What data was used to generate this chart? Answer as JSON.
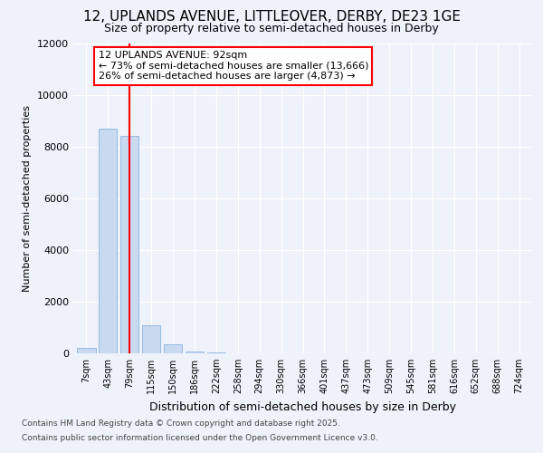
{
  "title_line1": "12, UPLANDS AVENUE, LITTLEOVER, DERBY, DE23 1GE",
  "title_line2": "Size of property relative to semi-detached houses in Derby",
  "xlabel": "Distribution of semi-detached houses by size in Derby",
  "ylabel": "Number of semi-detached properties",
  "categories": [
    "7sqm",
    "43sqm",
    "79sqm",
    "115sqm",
    "150sqm",
    "186sqm",
    "222sqm",
    "258sqm",
    "294sqm",
    "330sqm",
    "366sqm",
    "401sqm",
    "437sqm",
    "473sqm",
    "509sqm",
    "545sqm",
    "581sqm",
    "616sqm",
    "652sqm",
    "688sqm",
    "724sqm"
  ],
  "values": [
    200,
    8700,
    8400,
    1100,
    350,
    80,
    20,
    0,
    0,
    0,
    0,
    0,
    0,
    0,
    0,
    0,
    0,
    0,
    0,
    0,
    0
  ],
  "bar_color": "#c8d9f0",
  "bar_edgecolor": "#8ab4de",
  "property_bin_index": 2,
  "vline_color": "red",
  "annotation_title": "12 UPLANDS AVENUE: 92sqm",
  "annotation_line2": "← 73% of semi-detached houses are smaller (13,666)",
  "annotation_line3": "26% of semi-detached houses are larger (4,873) →",
  "annotation_box_facecolor": "white",
  "annotation_box_edgecolor": "red",
  "ylim": [
    0,
    12000
  ],
  "yticks": [
    0,
    2000,
    4000,
    6000,
    8000,
    10000,
    12000
  ],
  "footer_line1": "Contains HM Land Registry data © Crown copyright and database right 2025.",
  "footer_line2": "Contains public sector information licensed under the Open Government Licence v3.0.",
  "bg_color": "#eef2fa",
  "grid_color": "white",
  "title1_fontsize": 11,
  "title2_fontsize": 9,
  "tick_fontsize": 8,
  "xtick_fontsize": 7,
  "xlabel_fontsize": 9,
  "ylabel_fontsize": 8,
  "ann_fontsize": 8,
  "footer_fontsize": 6.5
}
